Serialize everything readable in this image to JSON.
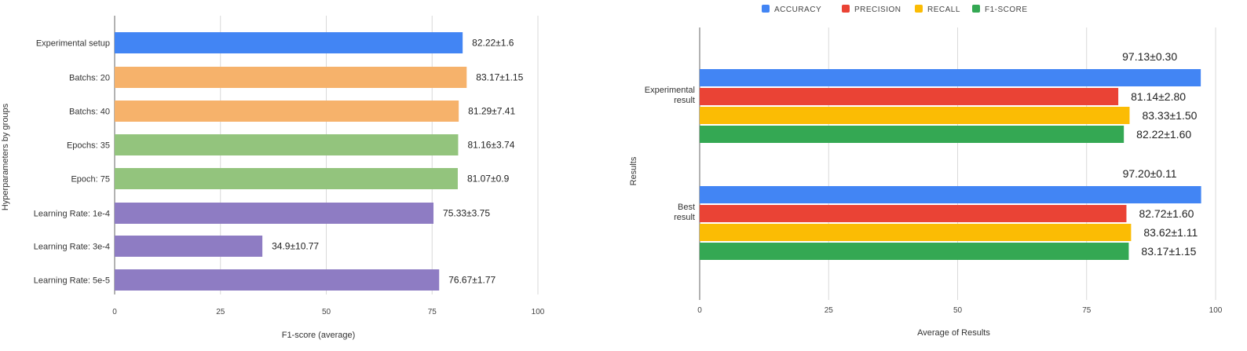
{
  "chart_data": [
    {
      "type": "bar",
      "orientation": "horizontal",
      "categories": [
        "Experimental setup",
        "Batchs: 20",
        "Batchs: 40",
        "Epochs: 35",
        "Epoch: 75",
        "Learning Rate: 1e-4",
        "Learning Rate: 3e-4",
        "Learning Rate: 5e-5"
      ],
      "values": [
        82.22,
        83.17,
        81.29,
        81.16,
        81.07,
        75.33,
        34.9,
        76.67
      ],
      "value_labels": [
        "82.22±1.6",
        "83.17±1.15",
        "81.29±7.41",
        "81.16±3.74",
        "81.07±0.9",
        "75.33±3.75",
        "34.9±10.77",
        "76.67±1.77"
      ],
      "colors": [
        "#4285f4",
        "#f6b26b",
        "#f6b26b",
        "#93c47d",
        "#93c47d",
        "#8e7cc3",
        "#8e7cc3",
        "#8e7cc3"
      ],
      "xlabel": "F1-score (average)",
      "ylabel": "Hyperparameters by groups",
      "xlim": [
        0,
        100
      ],
      "xticks": [
        0,
        25,
        50,
        75,
        100
      ],
      "xtick_labels": [
        "0",
        "25",
        "50",
        "75",
        "100"
      ],
      "grid": true
    },
    {
      "type": "bar",
      "orientation": "horizontal",
      "categories": [
        [
          "Experimental",
          "result"
        ],
        [
          "Best",
          "result"
        ]
      ],
      "series": [
        {
          "name": "ACCURACY",
          "color": "#4285f4",
          "values": [
            97.13,
            97.2
          ],
          "value_labels": [
            "97.13±0.30",
            "97.20±0.11"
          ]
        },
        {
          "name": "PRECISION",
          "color": "#ea4335",
          "values": [
            81.14,
            82.72
          ],
          "value_labels": [
            "81.14±2.80",
            "82.72±1.60"
          ]
        },
        {
          "name": "RECALL",
          "color": "#fbbc04",
          "values": [
            83.33,
            83.62
          ],
          "value_labels": [
            "83.33±1.50",
            "83.62±1.11"
          ]
        },
        {
          "name": "F1-SCORE",
          "color": "#34a853",
          "values": [
            82.22,
            83.17
          ],
          "value_labels": [
            "82.22±1.60",
            "83.17±1.15"
          ]
        }
      ],
      "xlabel": "Average of Results",
      "ylabel": "Results",
      "xlim": [
        0,
        100
      ],
      "xticks": [
        0,
        25,
        50,
        75,
        100
      ],
      "xtick_labels": [
        "0",
        "25",
        "50",
        "75",
        "100"
      ],
      "legend_position": "top",
      "grid": true
    }
  ]
}
